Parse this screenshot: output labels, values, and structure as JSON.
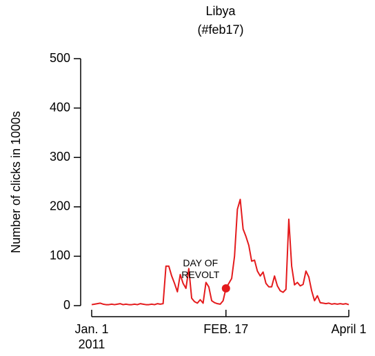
{
  "chart_data": {
    "type": "line",
    "title": "Libya",
    "subtitle": "(#feb17)",
    "y_label": "Number of clicks in 1000s",
    "annotation": [
      "DAY OF",
      "REVOLT"
    ],
    "highlight": {
      "x": "2011-02-17",
      "color": "#e41a1c"
    },
    "x": [
      "2011-01-01",
      "2011-01-02",
      "2011-01-03",
      "2011-01-04",
      "2011-01-05",
      "2011-01-06",
      "2011-01-07",
      "2011-01-08",
      "2011-01-09",
      "2011-01-10",
      "2011-01-11",
      "2011-01-12",
      "2011-01-13",
      "2011-01-14",
      "2011-01-15",
      "2011-01-16",
      "2011-01-17",
      "2011-01-18",
      "2011-01-19",
      "2011-01-20",
      "2011-01-21",
      "2011-01-22",
      "2011-01-23",
      "2011-01-24",
      "2011-01-25",
      "2011-01-26",
      "2011-01-27",
      "2011-01-28",
      "2011-01-29",
      "2011-01-30",
      "2011-01-31",
      "2011-02-01",
      "2011-02-02",
      "2011-02-03",
      "2011-02-04",
      "2011-02-05",
      "2011-02-06",
      "2011-02-07",
      "2011-02-08",
      "2011-02-09",
      "2011-02-10",
      "2011-02-11",
      "2011-02-12",
      "2011-02-13",
      "2011-02-14",
      "2011-02-15",
      "2011-02-16",
      "2011-02-17",
      "2011-02-18",
      "2011-02-19",
      "2011-02-20",
      "2011-02-21",
      "2011-02-22",
      "2011-02-23",
      "2011-02-24",
      "2011-02-25",
      "2011-02-26",
      "2011-02-27",
      "2011-02-28",
      "2011-03-01",
      "2011-03-02",
      "2011-03-03",
      "2011-03-04",
      "2011-03-05",
      "2011-03-06",
      "2011-03-07",
      "2011-03-08",
      "2011-03-09",
      "2011-03-10",
      "2011-03-11",
      "2011-03-12",
      "2011-03-13",
      "2011-03-14",
      "2011-03-15",
      "2011-03-16",
      "2011-03-17",
      "2011-03-18",
      "2011-03-19",
      "2011-03-20",
      "2011-03-21",
      "2011-03-22",
      "2011-03-23",
      "2011-03-24",
      "2011-03-25",
      "2011-03-26",
      "2011-03-27",
      "2011-03-28",
      "2011-03-29",
      "2011-03-30",
      "2011-03-31",
      "2011-04-01"
    ],
    "series": [
      {
        "color": "#e41a1c",
        "values": [
          2,
          3,
          4,
          5,
          3,
          2,
          2,
          3,
          2,
          3,
          4,
          2,
          3,
          2,
          2,
          3,
          2,
          4,
          3,
          2,
          2,
          3,
          2,
          4,
          3,
          4,
          80,
          80,
          60,
          45,
          28,
          63,
          45,
          35,
          75,
          15,
          8,
          5,
          12,
          5,
          47,
          38,
          10,
          6,
          4,
          3,
          10,
          35,
          45,
          55,
          100,
          195,
          215,
          155,
          140,
          122,
          90,
          92,
          70,
          60,
          68,
          45,
          38,
          38,
          60,
          40,
          30,
          27,
          33,
          175,
          80,
          42,
          47,
          40,
          43,
          70,
          58,
          30,
          10,
          20,
          6,
          5,
          4,
          5,
          3,
          4,
          3,
          4,
          3,
          4,
          2
        ]
      }
    ],
    "xlim": [
      "2011-01-01",
      "2011-04-01"
    ],
    "xticks": [
      {
        "value": "2011-01-01",
        "label": [
          "Jan. 1",
          "2011"
        ]
      },
      {
        "value": "2011-02-17",
        "label": [
          "FEB. 17"
        ]
      },
      {
        "value": "2011-04-01",
        "label": [
          "April 1"
        ]
      }
    ],
    "ylim": [
      0,
      500
    ],
    "yticks": [
      0,
      100,
      200,
      300,
      400,
      500
    ]
  }
}
